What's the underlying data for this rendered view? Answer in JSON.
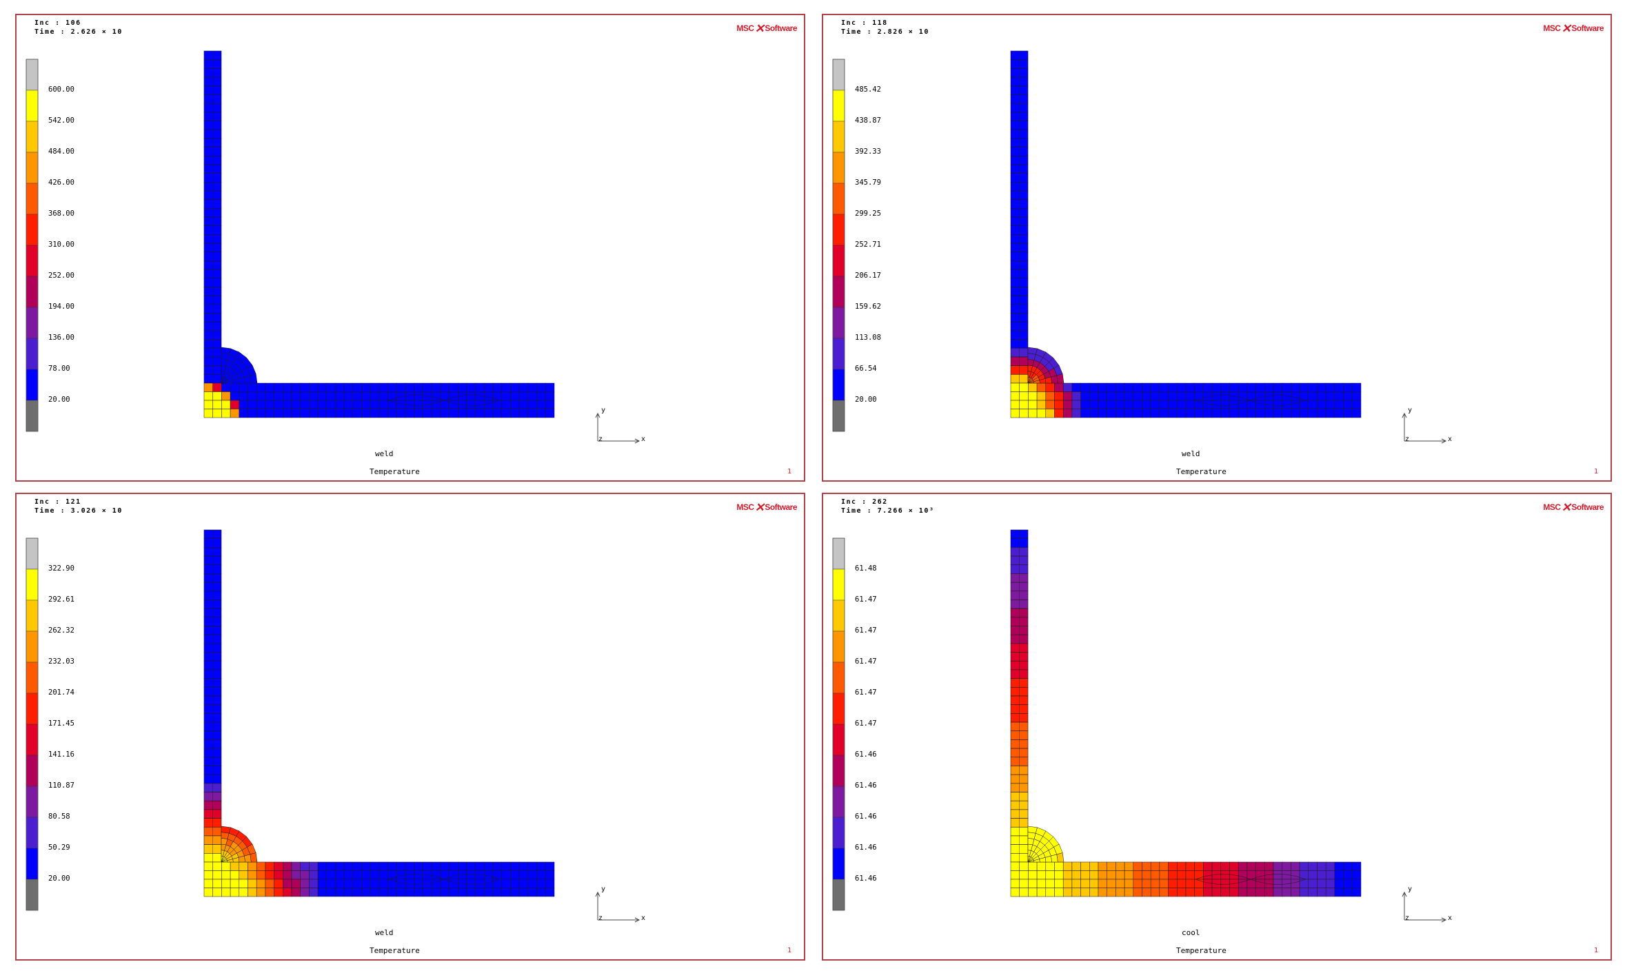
{
  "logo": {
    "left": "MSC",
    "right": "Software"
  },
  "panels": [
    {
      "inc": "Inc : 106",
      "time": "Time : 2.626 × 10",
      "job": "weld",
      "quantity": "Temperature",
      "page_number": "1",
      "legend_ticks": [
        "600.00",
        "542.00",
        "484.00",
        "426.00",
        "368.00",
        "310.00",
        "252.00",
        "194.00",
        "136.00",
        "78.00",
        "20.00"
      ],
      "heat_state": "early-weld"
    },
    {
      "inc": "Inc : 118",
      "time": "Time : 2.826 × 10",
      "job": "weld",
      "quantity": "Temperature",
      "page_number": "1",
      "legend_ticks": [
        "485.42",
        "438.87",
        "392.33",
        "345.79",
        "299.25",
        "252.71",
        "206.17",
        "159.62",
        "113.08",
        "66.54",
        "20.00"
      ],
      "heat_state": "mid-weld"
    },
    {
      "inc": "Inc : 121",
      "time": "Time : 3.026 × 10",
      "job": "weld",
      "quantity": "Temperature",
      "page_number": "1",
      "legend_ticks": [
        "322.90",
        "292.61",
        "262.32",
        "232.03",
        "201.74",
        "171.45",
        "141.16",
        "110.87",
        "80.58",
        "50.29",
        "20.00"
      ],
      "heat_state": "late-weld"
    },
    {
      "inc": "Inc : 262",
      "time": "Time : 7.266 × 10³",
      "job": "cool",
      "quantity": "Temperature",
      "page_number": "1",
      "legend_ticks": [
        "61.48",
        "61.47",
        "61.47",
        "61.47",
        "61.47",
        "61.47",
        "61.46",
        "61.46",
        "61.46",
        "61.46",
        "61.46"
      ],
      "heat_state": "cooled"
    }
  ],
  "axes": {
    "y": "y",
    "x": "x",
    "z": "z"
  },
  "legend_colors": [
    "#c4c4c4",
    "#ffff00",
    "#ffc800",
    "#ff9600",
    "#ff5a00",
    "#ff1e00",
    "#e0002a",
    "#b0005a",
    "#7d1aa0",
    "#4b1ed0",
    "#0000ff",
    "#6e6e6e"
  ]
}
